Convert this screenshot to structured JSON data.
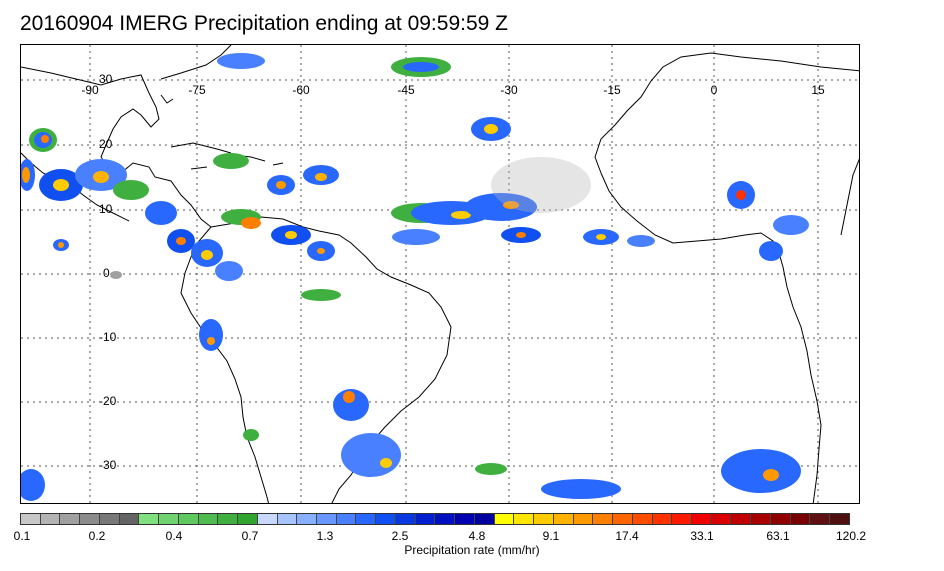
{
  "title": "20160904 IMERG Precipitation ending at 09:59:59 Z",
  "map": {
    "lon_labels": [
      "-90",
      "-75",
      "-60",
      "-45",
      "-30",
      "-15",
      "0",
      "15"
    ],
    "lat_labels": [
      "30",
      "20",
      "10",
      "0",
      "-10",
      "-20",
      "-30"
    ],
    "land_outline_color": "#000000",
    "grid_style": "dotted"
  },
  "colorbar": {
    "title": "Precipitation rate (mm/hr)",
    "tick_labels": [
      "0.1",
      "0.2",
      "0.4",
      "0.7",
      "1.3",
      "2.5",
      "4.8",
      "9.1",
      "17.4",
      "33.1",
      "63.1",
      "120.2"
    ],
    "colors": [
      "#c8c8c8",
      "#b4b4b4",
      "#a0a0a0",
      "#8c8c8c",
      "#787878",
      "#646464",
      "#7fe07f",
      "#6fd46f",
      "#5fc85f",
      "#4fbc4f",
      "#3fb03f",
      "#2fa42f",
      "#c8d8ff",
      "#a8c4ff",
      "#88b0ff",
      "#6898ff",
      "#4880ff",
      "#2868ff",
      "#1050f0",
      "#0838e0",
      "#0020d0",
      "#0010c0",
      "#0000b0",
      "#0000a0",
      "#ffff00",
      "#ffe600",
      "#ffcc00",
      "#ffb300",
      "#ff9900",
      "#ff8000",
      "#ff6600",
      "#ff4d00",
      "#ff3300",
      "#ff1a00",
      "#f00000",
      "#d80000",
      "#c00000",
      "#a80000",
      "#900000",
      "#780000",
      "#601010",
      "#501010"
    ]
  }
}
